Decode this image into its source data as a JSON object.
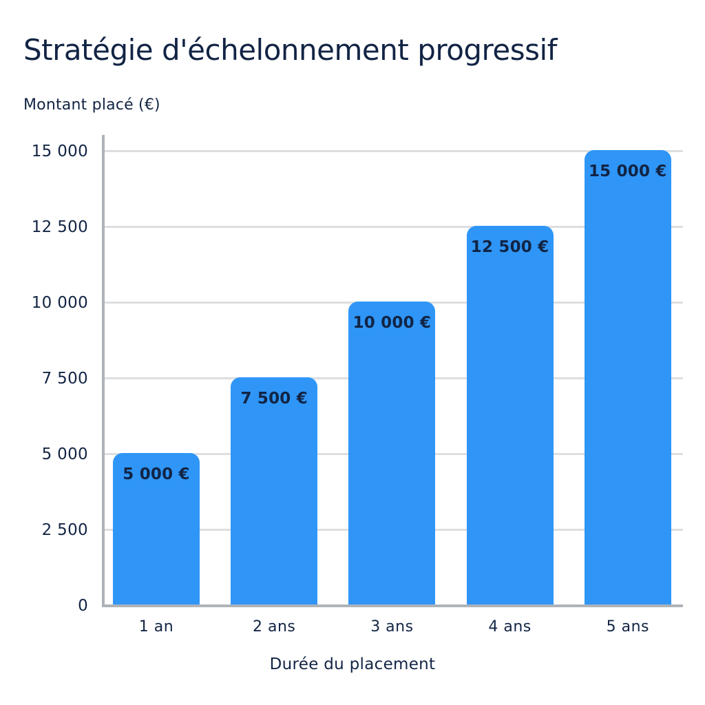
{
  "chart_data": {
    "type": "bar",
    "title": "Stratégie d'échelonnement progressif",
    "xlabel": "Durée du placement",
    "ylabel": "Montant placé (€)",
    "categories": [
      "1 an",
      "2 ans",
      "3 ans",
      "4 ans",
      "5 ans"
    ],
    "values": [
      5000,
      7500,
      10000,
      12500,
      15000
    ],
    "value_labels": [
      "5 000 €",
      "7 500 €",
      "10 000 €",
      "12 500 €",
      "15 000 €"
    ],
    "yticks": [
      0,
      2500,
      5000,
      7500,
      10000,
      12500,
      15000
    ],
    "ytick_labels": [
      "0",
      "2 500",
      "5 000",
      "7 500",
      "10 000",
      "12 500",
      "15 000"
    ],
    "ylim": [
      0,
      15000
    ],
    "grid": "horizontal",
    "legend": "none",
    "colors": {
      "bar": "#2F96F8",
      "text": "#122444",
      "grid": "#DCDEE0",
      "axis": "#AEB3B9",
      "background": "#FFFFFF"
    }
  }
}
